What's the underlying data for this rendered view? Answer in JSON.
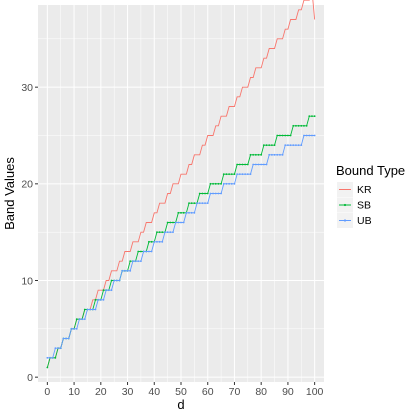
{
  "chart_data": {
    "type": "line",
    "xlabel": "d",
    "ylabel": "Band Values",
    "xlim": [
      -3.5,
      103.5
    ],
    "ylim": [
      -0.5,
      38.5
    ],
    "x_ticks": [
      0,
      10,
      20,
      30,
      40,
      50,
      60,
      70,
      80,
      90,
      100
    ],
    "y_ticks": [
      0,
      10,
      20,
      30
    ],
    "grid": true,
    "panel_background": "#EBEBEB",
    "legend": {
      "title": "Bound Type",
      "placement": "right"
    },
    "x": [
      0,
      1,
      2,
      3,
      4,
      5,
      6,
      7,
      8,
      9,
      10,
      11,
      12,
      13,
      14,
      15,
      16,
      17,
      18,
      19,
      20,
      21,
      22,
      23,
      24,
      25,
      26,
      27,
      28,
      29,
      30,
      31,
      32,
      33,
      34,
      35,
      36,
      37,
      38,
      39,
      40,
      41,
      42,
      43,
      44,
      45,
      46,
      47,
      48,
      49,
      50,
      51,
      52,
      53,
      54,
      55,
      56,
      57,
      58,
      59,
      60,
      61,
      62,
      63,
      64,
      65,
      66,
      67,
      68,
      69,
      70,
      71,
      72,
      73,
      74,
      75,
      76,
      77,
      78,
      79,
      80,
      81,
      82,
      83,
      84,
      85,
      86,
      87,
      88,
      89,
      90,
      91,
      92,
      93,
      94,
      95,
      96,
      97,
      98,
      99,
      100
    ],
    "series": [
      {
        "name": "KR",
        "color": "#F8766D",
        "values": [
          1,
          2,
          2,
          2,
          3,
          3,
          4,
          4,
          4,
          5,
          5,
          6,
          6,
          6,
          7,
          7,
          7,
          8,
          8,
          9,
          9,
          9,
          10,
          10,
          11,
          11,
          11,
          12,
          12,
          13,
          13,
          13,
          14,
          14,
          14,
          15,
          15,
          16,
          16,
          16,
          17,
          17,
          18,
          18,
          18,
          19,
          19,
          20,
          20,
          20,
          21,
          21,
          21,
          22,
          22,
          23,
          23,
          23,
          24,
          24,
          25,
          25,
          25,
          26,
          26,
          27,
          27,
          27,
          28,
          28,
          28,
          29,
          29,
          30,
          30,
          30,
          31,
          31,
          32,
          32,
          32,
          33,
          33,
          34,
          34,
          34,
          35,
          35,
          35,
          36,
          36,
          37,
          37,
          37,
          38,
          38,
          39,
          39,
          39,
          40,
          37
        ]
      },
      {
        "name": "SB",
        "color": "#00BA38",
        "values": [
          1,
          2,
          2,
          2,
          3,
          3,
          4,
          4,
          4,
          5,
          5,
          6,
          6,
          6,
          7,
          7,
          7,
          7,
          8,
          8,
          8,
          9,
          9,
          9,
          10,
          10,
          10,
          10,
          11,
          11,
          11,
          12,
          12,
          12,
          13,
          13,
          13,
          13,
          14,
          14,
          14,
          15,
          15,
          15,
          15,
          16,
          16,
          16,
          16,
          17,
          17,
          17,
          17,
          18,
          18,
          18,
          18,
          19,
          19,
          19,
          19,
          20,
          20,
          20,
          20,
          20,
          21,
          21,
          21,
          21,
          21,
          22,
          22,
          22,
          22,
          22,
          23,
          23,
          23,
          23,
          23,
          24,
          24,
          24,
          24,
          24,
          25,
          25,
          25,
          25,
          25,
          25,
          26,
          26,
          26,
          26,
          26,
          26,
          27,
          27,
          27
        ]
      },
      {
        "name": "UB",
        "color": "#619CFF",
        "values": [
          2,
          2,
          2,
          3,
          3,
          3,
          4,
          4,
          4,
          5,
          5,
          5,
          6,
          6,
          6,
          7,
          7,
          7,
          7,
          8,
          8,
          8,
          9,
          9,
          9,
          10,
          10,
          10,
          11,
          11,
          11,
          11,
          12,
          12,
          12,
          12,
          13,
          13,
          13,
          13,
          14,
          14,
          14,
          14,
          15,
          15,
          15,
          15,
          16,
          16,
          16,
          16,
          17,
          17,
          17,
          17,
          18,
          18,
          18,
          18,
          18,
          19,
          19,
          19,
          19,
          19,
          20,
          20,
          20,
          20,
          20,
          21,
          21,
          21,
          21,
          21,
          21,
          22,
          22,
          22,
          22,
          22,
          22,
          23,
          23,
          23,
          23,
          23,
          23,
          24,
          24,
          24,
          24,
          24,
          24,
          24,
          25,
          25,
          25,
          25,
          25
        ]
      }
    ]
  }
}
